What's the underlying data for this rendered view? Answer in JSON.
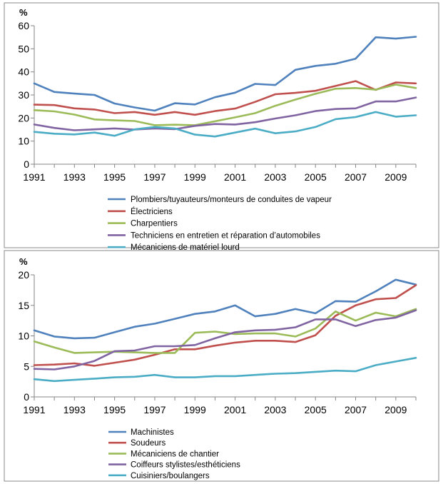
{
  "chart_data": [
    {
      "type": "line",
      "title": "",
      "ylabel": "%",
      "xlabel": "",
      "ylim": [
        0,
        60
      ],
      "yticks": [
        0,
        10,
        20,
        30,
        40,
        50,
        60
      ],
      "x": [
        1991,
        1992,
        1993,
        1994,
        1995,
        1996,
        1997,
        1998,
        1999,
        2000,
        2001,
        2002,
        2003,
        2004,
        2005,
        2006,
        2007,
        2008,
        2009,
        2010
      ],
      "xtick_labels": [
        "1991",
        "1993",
        "1995",
        "1997",
        "1999",
        "2001",
        "2003",
        "2005",
        "2007",
        "2009"
      ],
      "grid": false,
      "legend": "bottom",
      "series": [
        {
          "name": "Plombiers/tuyauteurs/monteurs de conduites de vapeur",
          "color": "#4F81BD",
          "values": [
            35,
            31.3,
            30.6,
            30,
            26.3,
            24.6,
            23.2,
            26.4,
            25.9,
            29,
            31,
            34.8,
            34.3,
            40.9,
            42.6,
            43.5,
            45.7,
            55,
            54.4,
            55.2
          ]
        },
        {
          "name": "Électriciens",
          "color": "#C0504D",
          "values": [
            25.8,
            25.6,
            24.2,
            23.7,
            22.1,
            22.6,
            21.4,
            22.6,
            21.4,
            23,
            24.1,
            27,
            30.3,
            30.9,
            31.8,
            33.9,
            36,
            32.2,
            35.4,
            35
          ]
        },
        {
          "name": "Charpentiers",
          "color": "#9BBB59",
          "values": [
            23.4,
            22.9,
            21.5,
            19.4,
            19,
            18.7,
            16.9,
            17.1,
            16.9,
            18.6,
            20.3,
            22.1,
            25.3,
            28,
            30.5,
            32.7,
            33,
            32.3,
            34.5,
            33
          ]
        },
        {
          "name": "Techniciens en entretien et réparation d’automobiles",
          "color": "#8064A2",
          "values": [
            17.2,
            15.7,
            14.7,
            15.1,
            15.5,
            15,
            15.5,
            15.2,
            16.6,
            17.4,
            17.2,
            18.2,
            19.8,
            21.2,
            23,
            23.9,
            24.2,
            27.2,
            27.2,
            28.9
          ]
        },
        {
          "name": "Mécaniciens de matériel lourd",
          "color": "#4BACC6",
          "values": [
            14,
            13.2,
            12.9,
            13.7,
            12.3,
            15.1,
            16.1,
            15.5,
            12.8,
            12,
            13.7,
            15.4,
            13.4,
            14.2,
            16.1,
            19.5,
            20.4,
            22.6,
            20.6,
            21.2
          ]
        }
      ]
    },
    {
      "type": "line",
      "title": "",
      "ylabel": "%",
      "xlabel": "",
      "ylim": [
        0,
        20
      ],
      "yticks": [
        0,
        5,
        10,
        15,
        20
      ],
      "x": [
        1991,
        1992,
        1993,
        1994,
        1995,
        1996,
        1997,
        1998,
        1999,
        2000,
        2001,
        2002,
        2003,
        2004,
        2005,
        2006,
        2007,
        2008,
        2009,
        2010
      ],
      "xtick_labels": [
        "1991",
        "1993",
        "1995",
        "1997",
        "1999",
        "2001",
        "2003",
        "2005",
        "2007",
        "2009"
      ],
      "grid": false,
      "legend": "bottom",
      "series": [
        {
          "name": "Machinistes",
          "color": "#4F81BD",
          "values": [
            10.9,
            9.9,
            9.6,
            9.7,
            10.6,
            11.5,
            12,
            12.8,
            13.6,
            14,
            15,
            13.2,
            13.6,
            14.4,
            13.7,
            15.7,
            15.6,
            17.3,
            19.2,
            18.4
          ]
        },
        {
          "name": "Soudeurs",
          "color": "#C0504D",
          "values": [
            5.2,
            5.3,
            5.5,
            5.1,
            5.6,
            6.1,
            6.9,
            7.8,
            7.8,
            8.4,
            8.9,
            9.2,
            9.2,
            9,
            10.1,
            13.3,
            15,
            16,
            16.2,
            18.3
          ]
        },
        {
          "name": "Mécaniciens de chantier",
          "color": "#9BBB59",
          "values": [
            9.1,
            8.1,
            7.2,
            7.3,
            7.4,
            7.3,
            7.2,
            7.2,
            10.5,
            10.7,
            10.3,
            10.4,
            10.4,
            9.9,
            11.2,
            14,
            12.5,
            13.8,
            13.2,
            14.4
          ]
        },
        {
          "name": "Coiffeurs stylistes/esthéticiens",
          "color": "#8064A2",
          "values": [
            4.6,
            4.5,
            5,
            5.9,
            7.5,
            7.6,
            8.3,
            8.3,
            8.5,
            9.6,
            10.6,
            10.9,
            11,
            11.4,
            12.7,
            12.7,
            11.6,
            12.6,
            13,
            14.2
          ]
        },
        {
          "name": "Cuisiniers/boulangers",
          "color": "#4BACC6",
          "values": [
            2.9,
            2.6,
            2.8,
            3,
            3.2,
            3.3,
            3.6,
            3.2,
            3.2,
            3.4,
            3.4,
            3.6,
            3.8,
            3.9,
            4.1,
            4.3,
            4.2,
            5.2,
            5.8,
            6.4
          ]
        }
      ]
    }
  ]
}
